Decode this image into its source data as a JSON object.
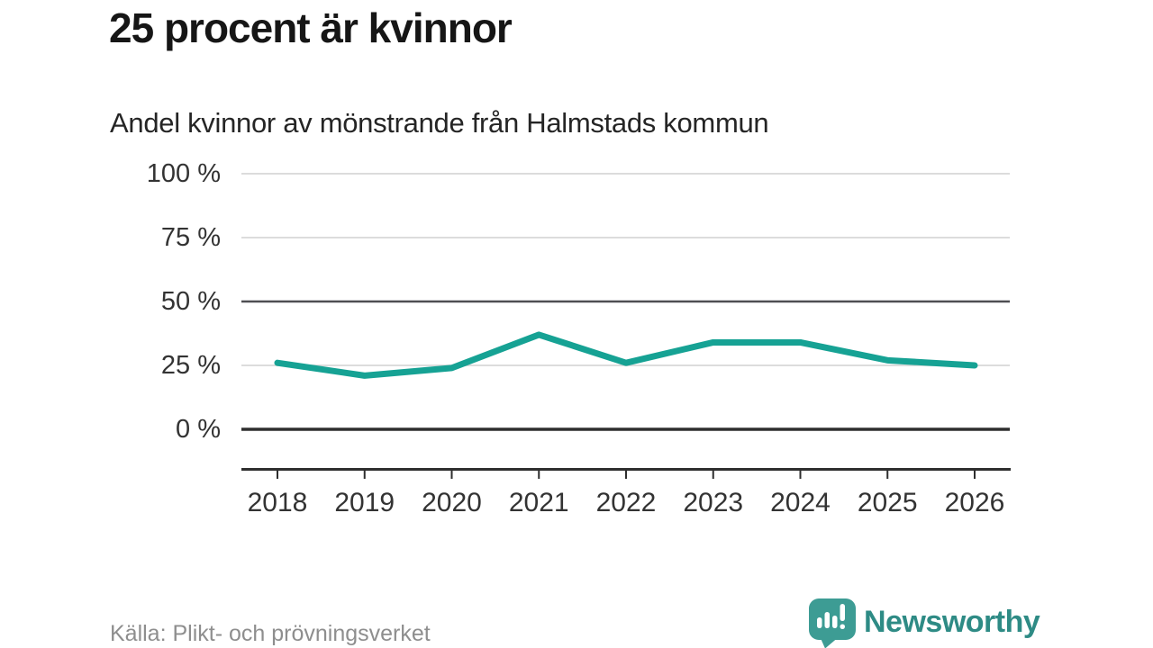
{
  "header": {
    "title": "25 procent är kvinnor",
    "subtitle": "Andel kvinnor av mönstrande från Halmstads kommun"
  },
  "footer": {
    "source": "Källa: Plikt- och prövningsverket",
    "brand_name": "Newsworthy",
    "brand_logo_icon": "newsworthy-speech-bubble-bar-chart-icon"
  },
  "colors": {
    "line": "#16a294",
    "grid_light": "#dcdcdc",
    "grid_benchmark": "#4e4e52",
    "axis": "#2e2e2e",
    "tick_text": "#333333",
    "brand_teal": "#3d9c94",
    "brand_text_teal": "#2e8b85"
  },
  "chart_data": {
    "type": "line",
    "title": "25 procent är kvinnor",
    "subtitle": "Andel kvinnor av mönstrande från Halmstads kommun",
    "categories": [
      "2018",
      "2019",
      "2020",
      "2021",
      "2022",
      "2023",
      "2024",
      "2025",
      "2026"
    ],
    "values": [
      26,
      21,
      24,
      37,
      26,
      34,
      34,
      27,
      25
    ],
    "unit": "%",
    "xlabel": "",
    "ylabel": "",
    "ylim": [
      0,
      100
    ],
    "yticks": [
      0,
      25,
      50,
      75,
      100
    ],
    "ytick_labels": [
      "0 %",
      "25 %",
      "50 %",
      "75 %",
      "100 %"
    ],
    "benchmark_line": 50,
    "grid": true,
    "legend": "none",
    "source": "Källa: Plikt- och prövningsverket"
  }
}
